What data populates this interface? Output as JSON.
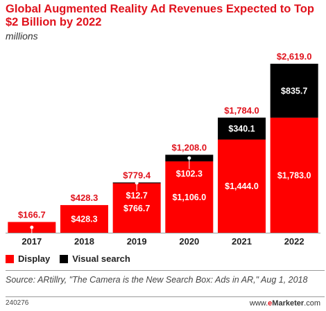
{
  "title": "Global Augmented Reality Ad Revenues Expected to Top $2 Billion by 2022",
  "subtitle": "millions",
  "legend": {
    "display_label": "Display",
    "visual_search_label": "Visual search"
  },
  "source": "Source: ARtillry, \"The Camera is the New Search Box: Ads in AR,\" Aug 1, 2018",
  "chart_id": "240276",
  "brand": {
    "prefix": "www.",
    "accent": "e",
    "name": "Marketer",
    "suffix": ".com"
  },
  "colors": {
    "display": "#ff0000",
    "visual_search": "#000000",
    "total_label": "#e0121c",
    "inner_label": "#ffffff"
  },
  "chart_data": {
    "type": "bar",
    "stacked": true,
    "categories": [
      "2017",
      "2018",
      "2019",
      "2020",
      "2021",
      "2022"
    ],
    "series": [
      {
        "name": "Display",
        "values": [
          166.7,
          428.3,
          766.7,
          1106.0,
          1444.0,
          1783.0
        ],
        "labels": [
          "$166.7",
          "$428.3",
          "$766.7",
          "$1,106.0",
          "$1,444.0",
          "$1,783.0"
        ]
      },
      {
        "name": "Visual search",
        "values": [
          0,
          0,
          12.7,
          102.3,
          340.1,
          835.7
        ],
        "labels": [
          "",
          "",
          "$12.7",
          "$102.3",
          "$340.1",
          "$835.7"
        ]
      }
    ],
    "totals": [
      166.7,
      428.3,
      779.4,
      1208.0,
      1784.0,
      2619.0
    ],
    "total_labels": [
      "$166.7",
      "$428.3",
      "$779.4",
      "$1,208.0",
      "$1,784.0",
      "$2,619.0"
    ],
    "ylim": [
      0,
      2619.0
    ],
    "grid": false,
    "legend_position": "bottom-left"
  }
}
